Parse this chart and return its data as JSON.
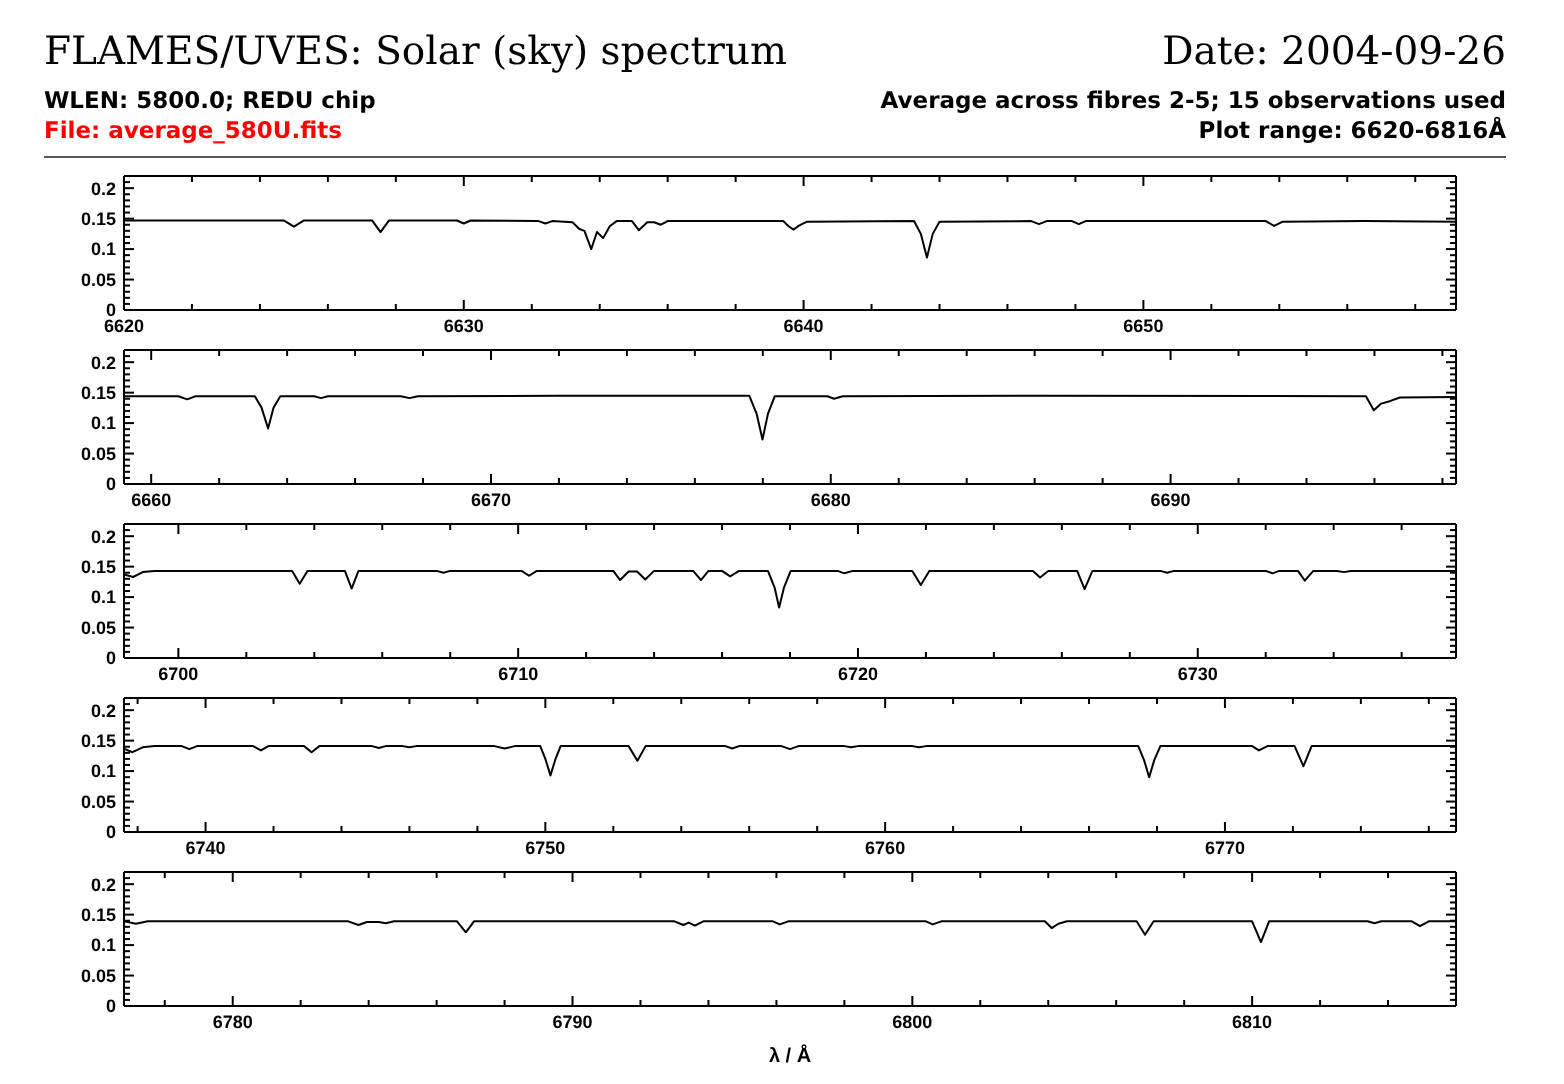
{
  "chart_data": [
    {
      "type": "line",
      "title": "FLAMES/UVES: Solar (sky) spectrum",
      "subtitle": "WLEN: 5800.0; REDU chip",
      "annotations": [
        "Date: 2004-09-26",
        "Average across fibres 2-5; 15 observations used",
        "File: average_580U.fits",
        "Plot range: 6620-6816Å"
      ],
      "color": "#000000",
      "x": [
        6620,
        6622.0,
        6624.7,
        6625.0,
        6625.3,
        6627.3,
        6627.55,
        6627.8,
        6629.8,
        6630.0,
        6630.2,
        6632.2,
        6632.4,
        6632.6,
        6633.2,
        6633.4,
        6633.55,
        6633.75,
        6633.92,
        6634.1,
        6634.3,
        6634.5,
        6634.95,
        6635.15,
        6635.4,
        6635.6,
        6635.8,
        6636.0,
        6639.4,
        6639.55,
        6639.7,
        6639.85,
        6640.1,
        6643.25,
        6643.45,
        6643.63,
        6643.8,
        6644.0,
        6646.7,
        6646.93,
        6647.15,
        6647.9,
        6648.1,
        6648.3,
        6653.6,
        6653.85,
        6654.1,
        6656.5,
        6659.2
      ],
      "values": [
        0.147,
        0.147,
        0.147,
        0.137,
        0.147,
        0.147,
        0.128,
        0.147,
        0.147,
        0.142,
        0.147,
        0.146,
        0.142,
        0.146,
        0.144,
        0.133,
        0.13,
        0.1,
        0.128,
        0.118,
        0.138,
        0.146,
        0.146,
        0.131,
        0.144,
        0.144,
        0.14,
        0.146,
        0.146,
        0.138,
        0.132,
        0.138,
        0.145,
        0.146,
        0.125,
        0.086,
        0.125,
        0.145,
        0.146,
        0.141,
        0.146,
        0.146,
        0.141,
        0.146,
        0.146,
        0.138,
        0.145,
        0.146,
        0.145
      ],
      "xlim": [
        6620,
        6659.2
      ],
      "xticks": [
        6620,
        {
          "value": 6622,
          "label": null
        },
        {
          "value": 6624,
          "label": null
        },
        {
          "value": 6626,
          "label": null
        },
        {
          "value": 6628,
          "label": null
        },
        6630,
        {
          "value": 6632,
          "label": null
        },
        {
          "value": 6634,
          "label": null
        },
        {
          "value": 6636,
          "label": null
        },
        {
          "value": 6638,
          "label": null
        },
        6640,
        {
          "value": 6642,
          "label": null
        },
        {
          "value": 6644,
          "label": null
        },
        {
          "value": 6646,
          "label": null
        },
        {
          "value": 6648,
          "label": null
        },
        6650,
        {
          "value": 6652,
          "label": null
        },
        {
          "value": 6654,
          "label": null
        },
        {
          "value": 6656,
          "label": null
        },
        {
          "value": 6658,
          "label": null
        }
      ],
      "ylim": [
        0,
        0.22
      ],
      "yticks": [
        0,
        {
          "value": 0.01,
          "label": null
        },
        {
          "value": 0.02,
          "label": null
        },
        {
          "value": 0.03,
          "label": null
        },
        {
          "value": 0.04,
          "label": null
        },
        0.05,
        {
          "value": 0.06,
          "label": null
        },
        {
          "value": 0.07,
          "label": null
        },
        {
          "value": 0.08,
          "label": null
        },
        {
          "value": 0.09,
          "label": null
        },
        0.1,
        {
          "value": 0.11,
          "label": null
        },
        {
          "value": 0.12,
          "label": null
        },
        {
          "value": 0.13,
          "label": null
        },
        {
          "value": 0.14,
          "label": null
        },
        0.15,
        {
          "value": 0.16,
          "label": null
        },
        {
          "value": 0.17,
          "label": null
        },
        {
          "value": 0.18,
          "label": null
        },
        {
          "value": 0.19,
          "label": null
        },
        0.2,
        {
          "value": 0.21,
          "label": null
        }
      ]
    },
    {
      "type": "line",
      "color": "#000000",
      "x": [
        6659.2,
        6660.8,
        6661.06,
        6661.3,
        6663.05,
        6663.25,
        6663.44,
        6663.6,
        6663.8,
        6664.8,
        6665.0,
        6665.2,
        6667.35,
        6667.6,
        6667.85,
        6672.0,
        6677.6,
        6677.82,
        6677.99,
        6678.15,
        6678.35,
        6679.9,
        6680.1,
        6680.35,
        6686.0,
        6695.75,
        6695.98,
        6696.2,
        6696.45,
        6696.75,
        6698.4
      ],
      "values": [
        0.144,
        0.144,
        0.139,
        0.144,
        0.144,
        0.125,
        0.091,
        0.125,
        0.144,
        0.144,
        0.141,
        0.144,
        0.144,
        0.141,
        0.144,
        0.145,
        0.145,
        0.115,
        0.073,
        0.115,
        0.144,
        0.144,
        0.14,
        0.144,
        0.145,
        0.144,
        0.121,
        0.132,
        0.136,
        0.142,
        0.143
      ],
      "xlim": [
        6659.2,
        6698.4
      ],
      "xticks": [
        6660,
        {
          "value": 6662,
          "label": null
        },
        {
          "value": 6664,
          "label": null
        },
        {
          "value": 6666,
          "label": null
        },
        {
          "value": 6668,
          "label": null
        },
        6670,
        {
          "value": 6672,
          "label": null
        },
        {
          "value": 6674,
          "label": null
        },
        {
          "value": 6676,
          "label": null
        },
        {
          "value": 6678,
          "label": null
        },
        6680,
        {
          "value": 6682,
          "label": null
        },
        {
          "value": 6684,
          "label": null
        },
        {
          "value": 6686,
          "label": null
        },
        {
          "value": 6688,
          "label": null
        },
        6690,
        {
          "value": 6692,
          "label": null
        },
        {
          "value": 6694,
          "label": null
        },
        {
          "value": 6696,
          "label": null
        },
        {
          "value": 6698,
          "label": null
        }
      ],
      "ylim": [
        0,
        0.22
      ],
      "yticks": [
        0,
        {
          "value": 0.01,
          "label": null
        },
        {
          "value": 0.02,
          "label": null
        },
        {
          "value": 0.03,
          "label": null
        },
        {
          "value": 0.04,
          "label": null
        },
        0.05,
        {
          "value": 0.06,
          "label": null
        },
        {
          "value": 0.07,
          "label": null
        },
        {
          "value": 0.08,
          "label": null
        },
        {
          "value": 0.09,
          "label": null
        },
        0.1,
        {
          "value": 0.11,
          "label": null
        },
        {
          "value": 0.12,
          "label": null
        },
        {
          "value": 0.13,
          "label": null
        },
        {
          "value": 0.14,
          "label": null
        },
        0.15,
        {
          "value": 0.16,
          "label": null
        },
        {
          "value": 0.17,
          "label": null
        },
        {
          "value": 0.18,
          "label": null
        },
        {
          "value": 0.19,
          "label": null
        },
        0.2,
        {
          "value": 0.21,
          "label": null
        }
      ]
    },
    {
      "type": "line",
      "color": "#000000",
      "x": [
        6698.4,
        6698.67,
        6698.95,
        6699.3,
        6703.35,
        6703.57,
        6703.8,
        6704.5,
        6704.9,
        6705.1,
        6705.3,
        6707.6,
        6707.8,
        6708.0,
        6710.1,
        6710.32,
        6710.55,
        6712.8,
        6713.0,
        6713.25,
        6713.5,
        6713.74,
        6714.0,
        6715.15,
        6715.38,
        6715.6,
        6716.0,
        6716.24,
        6716.5,
        6717.35,
        6717.55,
        6717.68,
        6717.82,
        6718.02,
        6719.4,
        6719.6,
        6719.85,
        6721.6,
        6721.85,
        6722.1,
        6725.15,
        6725.36,
        6725.6,
        6726.45,
        6726.67,
        6726.9,
        6728.9,
        6729.1,
        6729.3,
        6732.0,
        6732.2,
        6732.4,
        6732.95,
        6733.15,
        6733.4,
        6734.1,
        6734.3,
        6734.5,
        6737.6
      ],
      "values": [
        0.137,
        0.133,
        0.141,
        0.143,
        0.143,
        0.122,
        0.143,
        0.143,
        0.143,
        0.114,
        0.143,
        0.143,
        0.14,
        0.143,
        0.143,
        0.135,
        0.143,
        0.143,
        0.128,
        0.142,
        0.142,
        0.129,
        0.143,
        0.143,
        0.128,
        0.143,
        0.143,
        0.134,
        0.143,
        0.143,
        0.115,
        0.083,
        0.115,
        0.143,
        0.143,
        0.139,
        0.143,
        0.143,
        0.12,
        0.143,
        0.143,
        0.132,
        0.143,
        0.143,
        0.113,
        0.143,
        0.143,
        0.14,
        0.143,
        0.143,
        0.139,
        0.143,
        0.143,
        0.127,
        0.143,
        0.143,
        0.141,
        0.143,
        0.143
      ],
      "xlim": [
        6698.4,
        6737.6
      ],
      "xticks": [
        6700,
        {
          "value": 6702,
          "label": null
        },
        {
          "value": 6704,
          "label": null
        },
        {
          "value": 6706,
          "label": null
        },
        {
          "value": 6708,
          "label": null
        },
        6710,
        {
          "value": 6712,
          "label": null
        },
        {
          "value": 6714,
          "label": null
        },
        {
          "value": 6716,
          "label": null
        },
        {
          "value": 6718,
          "label": null
        },
        6720,
        {
          "value": 6722,
          "label": null
        },
        {
          "value": 6724,
          "label": null
        },
        {
          "value": 6726,
          "label": null
        },
        {
          "value": 6728,
          "label": null
        },
        6730,
        {
          "value": 6732,
          "label": null
        },
        {
          "value": 6734,
          "label": null
        },
        {
          "value": 6736,
          "label": null
        }
      ],
      "ylim": [
        0,
        0.22
      ],
      "yticks": [
        0,
        {
          "value": 0.01,
          "label": null
        },
        {
          "value": 0.02,
          "label": null
        },
        {
          "value": 0.03,
          "label": null
        },
        {
          "value": 0.04,
          "label": null
        },
        0.05,
        {
          "value": 0.06,
          "label": null
        },
        {
          "value": 0.07,
          "label": null
        },
        {
          "value": 0.08,
          "label": null
        },
        {
          "value": 0.09,
          "label": null
        },
        0.1,
        {
          "value": 0.11,
          "label": null
        },
        {
          "value": 0.12,
          "label": null
        },
        {
          "value": 0.13,
          "label": null
        },
        {
          "value": 0.14,
          "label": null
        },
        0.15,
        {
          "value": 0.16,
          "label": null
        },
        {
          "value": 0.17,
          "label": null
        },
        {
          "value": 0.18,
          "label": null
        },
        {
          "value": 0.19,
          "label": null
        },
        0.2,
        {
          "value": 0.21,
          "label": null
        }
      ]
    },
    {
      "type": "line",
      "color": "#000000",
      "x": [
        6737.6,
        6737.85,
        6738.15,
        6738.5,
        6739.3,
        6739.52,
        6739.75,
        6741.4,
        6741.63,
        6741.85,
        6742.9,
        6743.12,
        6743.35,
        6744.9,
        6745.1,
        6745.3,
        6745.8,
        6746.0,
        6746.2,
        6748.5,
        6748.8,
        6749.1,
        6749.85,
        6750.0,
        6750.15,
        6750.3,
        6750.45,
        6752.45,
        6752.71,
        6752.95,
        6755.3,
        6755.5,
        6755.7,
        6756.95,
        6757.2,
        6757.45,
        6758.8,
        6759.0,
        6759.2,
        6760.8,
        6761.0,
        6761.2,
        6767.45,
        6767.62,
        6767.77,
        6767.92,
        6768.1,
        6770.8,
        6771.0,
        6771.25,
        6772.05,
        6772.31,
        6772.55,
        6776.8
      ],
      "values": [
        0.137,
        0.131,
        0.139,
        0.141,
        0.141,
        0.136,
        0.141,
        0.141,
        0.134,
        0.141,
        0.141,
        0.131,
        0.141,
        0.141,
        0.138,
        0.141,
        0.141,
        0.139,
        0.141,
        0.141,
        0.137,
        0.141,
        0.141,
        0.12,
        0.093,
        0.12,
        0.141,
        0.141,
        0.117,
        0.141,
        0.141,
        0.137,
        0.141,
        0.141,
        0.136,
        0.141,
        0.141,
        0.139,
        0.141,
        0.141,
        0.139,
        0.141,
        0.141,
        0.118,
        0.09,
        0.118,
        0.141,
        0.141,
        0.134,
        0.141,
        0.141,
        0.108,
        0.141,
        0.141
      ],
      "xlim": [
        6737.6,
        6776.8
      ],
      "xticks": [
        {
          "value": 6738,
          "label": null
        },
        6740,
        {
          "value": 6742,
          "label": null
        },
        {
          "value": 6744,
          "label": null
        },
        {
          "value": 6746,
          "label": null
        },
        {
          "value": 6748,
          "label": null
        },
        6750,
        {
          "value": 6752,
          "label": null
        },
        {
          "value": 6754,
          "label": null
        },
        {
          "value": 6756,
          "label": null
        },
        {
          "value": 6758,
          "label": null
        },
        6760,
        {
          "value": 6762,
          "label": null
        },
        {
          "value": 6764,
          "label": null
        },
        {
          "value": 6766,
          "label": null
        },
        {
          "value": 6768,
          "label": null
        },
        6770,
        {
          "value": 6772,
          "label": null
        },
        {
          "value": 6774,
          "label": null
        },
        {
          "value": 6776,
          "label": null
        }
      ],
      "ylim": [
        0,
        0.22
      ],
      "yticks": [
        0,
        {
          "value": 0.01,
          "label": null
        },
        {
          "value": 0.02,
          "label": null
        },
        {
          "value": 0.03,
          "label": null
        },
        {
          "value": 0.04,
          "label": null
        },
        0.05,
        {
          "value": 0.06,
          "label": null
        },
        {
          "value": 0.07,
          "label": null
        },
        {
          "value": 0.08,
          "label": null
        },
        {
          "value": 0.09,
          "label": null
        },
        0.1,
        {
          "value": 0.11,
          "label": null
        },
        {
          "value": 0.12,
          "label": null
        },
        {
          "value": 0.13,
          "label": null
        },
        {
          "value": 0.14,
          "label": null
        },
        0.15,
        {
          "value": 0.16,
          "label": null
        },
        {
          "value": 0.17,
          "label": null
        },
        {
          "value": 0.18,
          "label": null
        },
        {
          "value": 0.19,
          "label": null
        },
        0.2,
        {
          "value": 0.21,
          "label": null
        }
      ]
    },
    {
      "type": "line",
      "xlabel": "λ / Å",
      "color": "#000000",
      "x": [
        6776.8,
        6777.15,
        6777.5,
        6783.4,
        6783.7,
        6783.95,
        6784.3,
        6784.5,
        6784.75,
        6786.6,
        6786.86,
        6787.1,
        6793.0,
        6793.26,
        6793.42,
        6793.6,
        6793.85,
        6795.9,
        6796.1,
        6796.35,
        6800.4,
        6800.6,
        6800.85,
        6803.9,
        6804.1,
        6804.3,
        6804.55,
        6806.6,
        6806.85,
        6807.1,
        6810.0,
        6810.26,
        6810.5,
        6813.4,
        6813.6,
        6813.8,
        6814.7,
        6814.94,
        6815.2,
        6816.0
      ],
      "values": [
        0.139,
        0.135,
        0.139,
        0.139,
        0.133,
        0.138,
        0.138,
        0.136,
        0.139,
        0.139,
        0.121,
        0.139,
        0.139,
        0.133,
        0.137,
        0.132,
        0.139,
        0.139,
        0.134,
        0.139,
        0.139,
        0.134,
        0.139,
        0.139,
        0.128,
        0.135,
        0.139,
        0.139,
        0.117,
        0.139,
        0.139,
        0.105,
        0.139,
        0.139,
        0.136,
        0.139,
        0.139,
        0.131,
        0.139,
        0.139
      ],
      "xlim": [
        6776.8,
        6816
      ],
      "xticks": [
        {
          "value": 6778,
          "label": null
        },
        6780,
        {
          "value": 6782,
          "label": null
        },
        {
          "value": 6784,
          "label": null
        },
        {
          "value": 6786,
          "label": null
        },
        {
          "value": 6788,
          "label": null
        },
        6790,
        {
          "value": 6792,
          "label": null
        },
        {
          "value": 6794,
          "label": null
        },
        {
          "value": 6796,
          "label": null
        },
        {
          "value": 6798,
          "label": null
        },
        6800,
        {
          "value": 6802,
          "label": null
        },
        {
          "value": 6804,
          "label": null
        },
        {
          "value": 6806,
          "label": null
        },
        {
          "value": 6808,
          "label": null
        },
        6810,
        {
          "value": 6812,
          "label": null
        },
        {
          "value": 6814,
          "label": null
        }
      ],
      "ylim": [
        0,
        0.22
      ],
      "yticks": [
        0,
        {
          "value": 0.01,
          "label": null
        },
        {
          "value": 0.02,
          "label": null
        },
        {
          "value": 0.03,
          "label": null
        },
        {
          "value": 0.04,
          "label": null
        },
        0.05,
        {
          "value": 0.06,
          "label": null
        },
        {
          "value": 0.07,
          "label": null
        },
        {
          "value": 0.08,
          "label": null
        },
        {
          "value": 0.09,
          "label": null
        },
        0.1,
        {
          "value": 0.11,
          "label": null
        },
        {
          "value": 0.12,
          "label": null
        },
        {
          "value": 0.13,
          "label": null
        },
        {
          "value": 0.14,
          "label": null
        },
        0.15,
        {
          "value": 0.16,
          "label": null
        },
        {
          "value": 0.17,
          "label": null
        },
        {
          "value": 0.18,
          "label": null
        },
        {
          "value": 0.19,
          "label": null
        },
        0.2,
        {
          "value": 0.21,
          "label": null
        }
      ]
    }
  ]
}
